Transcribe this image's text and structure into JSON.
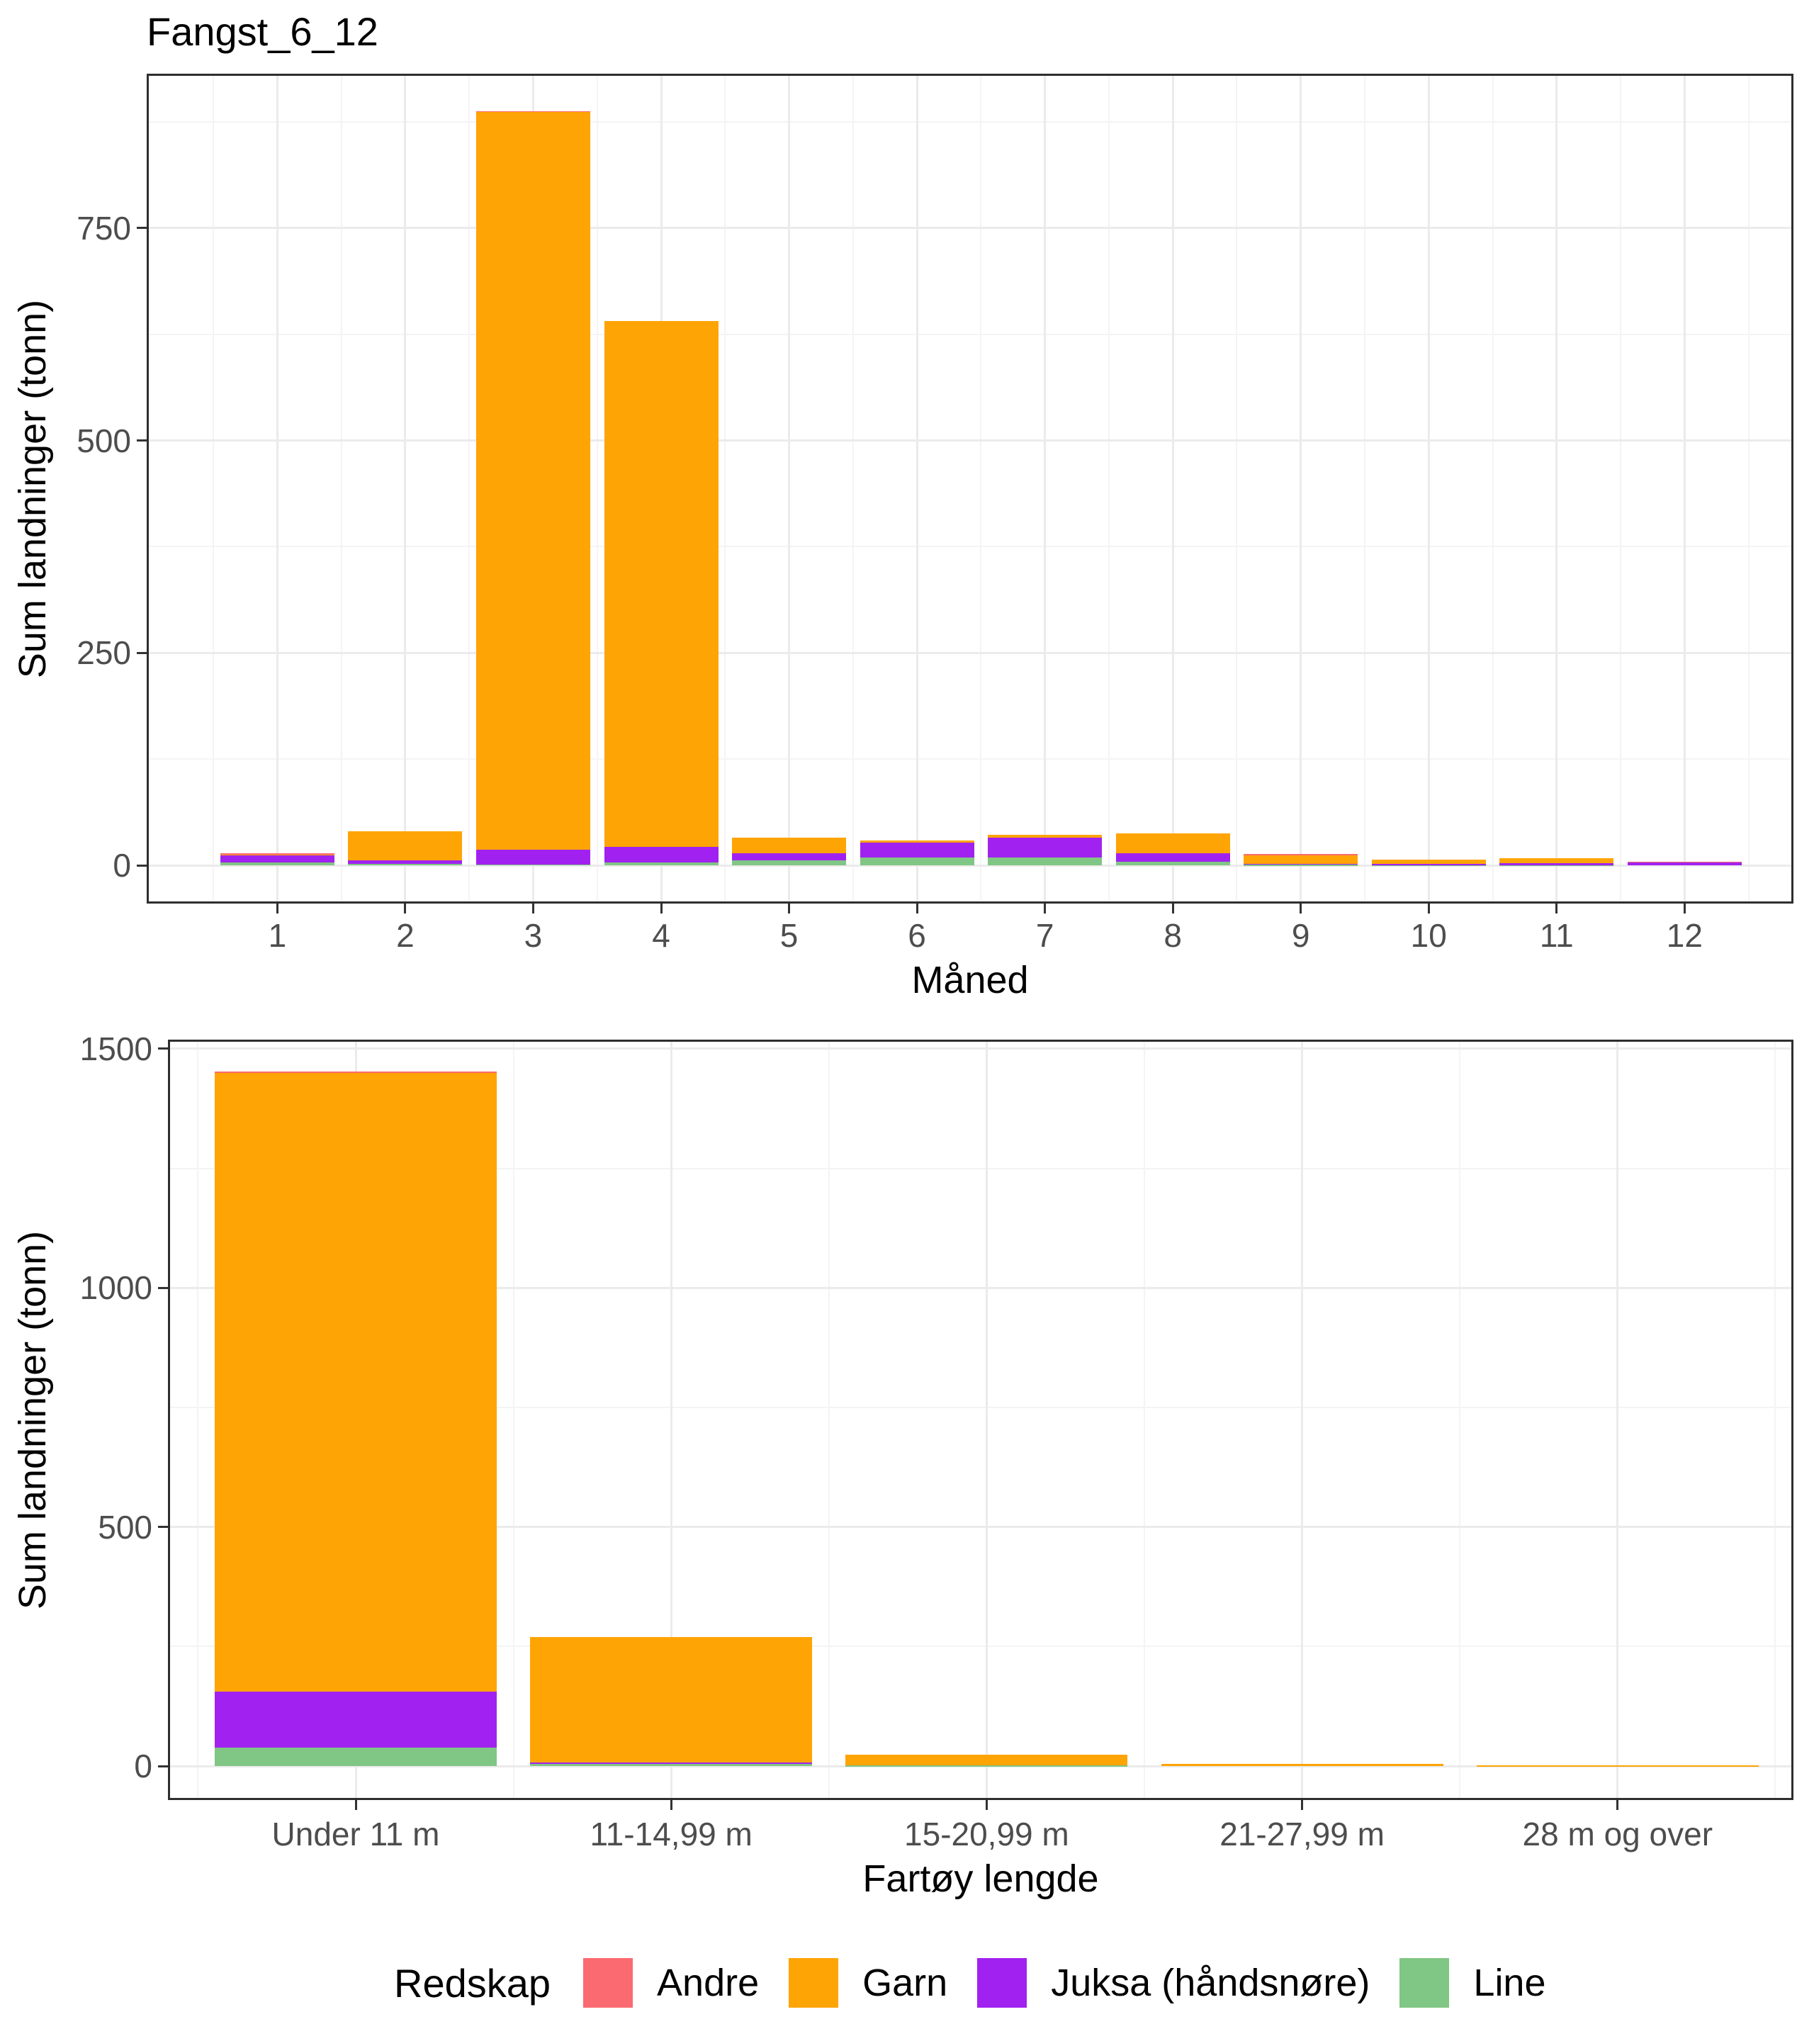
{
  "page_title": "Fangst_6_12",
  "chart_data": [
    {
      "type": "bar",
      "stacked": true,
      "title": "Fangst_6_12",
      "xlabel": "Måned",
      "ylabel": "Sum landninger (tonn)",
      "categories": [
        "1",
        "2",
        "3",
        "4",
        "5",
        "6",
        "7",
        "8",
        "9",
        "10",
        "11",
        "12"
      ],
      "yticks": [
        0,
        250,
        500,
        750
      ],
      "ylim": [
        0,
        930
      ],
      "grid": true,
      "legend_position": "shared-bottom",
      "stack_order_bottom_to_top": [
        "Line",
        "Juksa (håndsnøre)",
        "Garn",
        "Andre"
      ],
      "series": [
        {
          "name": "Line",
          "color": "#80C684",
          "values": [
            3,
            1.5,
            1,
            3.5,
            6,
            9,
            9,
            4.5,
            0.5,
            0.3,
            0.3,
            0
          ]
        },
        {
          "name": "Juksa (håndsnøre)",
          "color": "#A122F0",
          "values": [
            8.5,
            4.5,
            17.5,
            18.5,
            8.5,
            17.5,
            23.5,
            9.5,
            1.5,
            1.5,
            2.5,
            4
          ]
        },
        {
          "name": "Garn",
          "color": "#FFA405",
          "values": [
            1.5,
            34,
            869,
            619,
            18,
            3,
            3.5,
            23.5,
            11,
            4.7,
            5.2,
            0
          ]
        },
        {
          "name": "Andre",
          "color": "#FB6A70",
          "values": [
            1,
            0,
            0.5,
            0,
            0,
            0,
            0,
            0,
            0.3,
            0,
            0,
            0.3
          ]
        }
      ]
    },
    {
      "type": "bar",
      "stacked": true,
      "title": "",
      "xlabel": "Fartøy lengde",
      "ylabel": "Sum landninger (tonn)",
      "categories": [
        "Under 11 m",
        "11-14,99 m",
        "15-20,99 m",
        "21-27,99 m",
        "28 m og over"
      ],
      "yticks": [
        0,
        500,
        1000,
        1500
      ],
      "ylim": [
        0,
        1545
      ],
      "grid": true,
      "legend_position": "shared-bottom",
      "stack_order_bottom_to_top": [
        "Line",
        "Juksa (håndsnøre)",
        "Garn",
        "Andre"
      ],
      "series": [
        {
          "name": "Line",
          "color": "#80C684",
          "values": [
            38,
            5,
            1,
            0,
            0
          ]
        },
        {
          "name": "Juksa (håndsnøre)",
          "color": "#A122F0",
          "values": [
            117,
            2,
            0,
            0,
            0
          ]
        },
        {
          "name": "Garn",
          "color": "#FFA405",
          "values": [
            1294,
            263,
            22,
            5,
            1
          ]
        },
        {
          "name": "Andre",
          "color": "#FB6A70",
          "values": [
            3,
            0,
            0,
            0,
            0
          ]
        }
      ]
    }
  ],
  "legend": {
    "title": "Redskap",
    "entries": [
      {
        "label": "Andre",
        "color": "#FB6A70"
      },
      {
        "label": "Garn",
        "color": "#FFA405"
      },
      {
        "label": "Juksa (håndsnøre)",
        "color": "#A122F0"
      },
      {
        "label": "Line",
        "color": "#80C684"
      }
    ]
  },
  "colors": {
    "grid_major": "#EBEBEB",
    "grid_minor": "#F4F4F4",
    "panel_border": "#2E2E2E",
    "tick": "#333333",
    "tick_label": "#4D4D4D",
    "text": "#000000",
    "background": "#FFFFFF"
  }
}
